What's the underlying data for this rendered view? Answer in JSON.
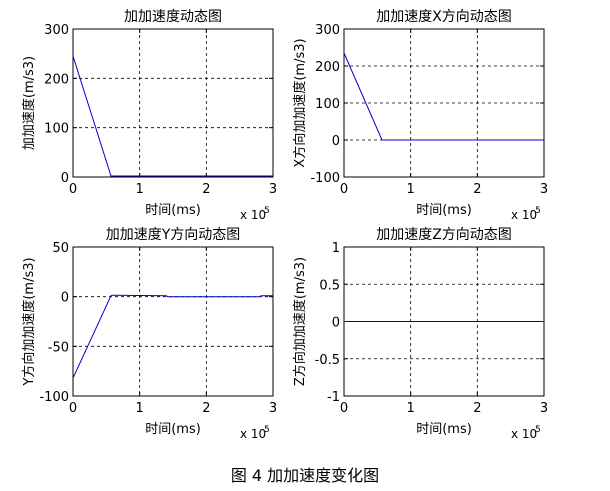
{
  "caption": "图 4 加加速度变化图",
  "chart_data": [
    {
      "type": "line",
      "title": "加加速度动态图",
      "xlabel": "时间(ms)",
      "ylabel": "加加速度(m/s3)",
      "x_exponent_label": "x 10",
      "x_exponent_power": "5",
      "xlim": [
        0,
        3
      ],
      "ylim": [
        0,
        300
      ],
      "xticks": [
        "0",
        "1",
        "2",
        "3"
      ],
      "yticks": [
        "0",
        "100",
        "200",
        "300"
      ],
      "grid": true,
      "line_color": "#0000cc",
      "series": [
        {
          "x": [
            0,
            0.57,
            3.0
          ],
          "y": [
            245,
            2,
            2
          ]
        }
      ]
    },
    {
      "type": "line",
      "title": "加加速度X方向动态图",
      "xlabel": "时间(ms)",
      "ylabel": "X方向加加速度(m/s3)",
      "x_exponent_label": "x 10",
      "x_exponent_power": "5",
      "xlim": [
        0,
        3
      ],
      "ylim": [
        -100,
        300
      ],
      "xticks": [
        "0",
        "1",
        "2",
        "3"
      ],
      "yticks": [
        "-100",
        "0",
        "100",
        "200",
        "300"
      ],
      "grid": true,
      "line_color": "#0000cc",
      "series": [
        {
          "x": [
            0,
            0.57,
            3.0
          ],
          "y": [
            235,
            0,
            0
          ]
        }
      ]
    },
    {
      "type": "line",
      "title": "加加速度Y方向动态图",
      "xlabel": "时间(ms)",
      "ylabel": "Y方向加加速度(m/s3)",
      "x_exponent_label": "x 10",
      "x_exponent_power": "5",
      "xlim": [
        0,
        3
      ],
      "ylim": [
        -100,
        50
      ],
      "xticks": [
        "0",
        "1",
        "2",
        "3"
      ],
      "yticks": [
        "-100",
        "-50",
        "0",
        "50"
      ],
      "grid": true,
      "line_color": "#0000cc",
      "series": [
        {
          "x": [
            0,
            0.57,
            0.6,
            1.4,
            1.42,
            2.8,
            2.82,
            3.0
          ],
          "y": [
            -82,
            1,
            1.5,
            1,
            0,
            0,
            1,
            1
          ]
        }
      ]
    },
    {
      "type": "line",
      "title": "加加速度Z方向动态图",
      "xlabel": "时间(ms)",
      "ylabel": "Z方向加加速度(m/s3)",
      "x_exponent_label": "x 10",
      "x_exponent_power": "5",
      "xlim": [
        0,
        3
      ],
      "ylim": [
        -1,
        1
      ],
      "xticks": [
        "0",
        "1",
        "2",
        "3"
      ],
      "yticks": [
        "-1",
        "-0.5",
        "0",
        "0.5",
        "1"
      ],
      "grid": true,
      "line_color": "#0000cc",
      "series": [
        {
          "x": [
            0,
            3.0
          ],
          "y": [
            0,
            0
          ]
        }
      ]
    }
  ]
}
